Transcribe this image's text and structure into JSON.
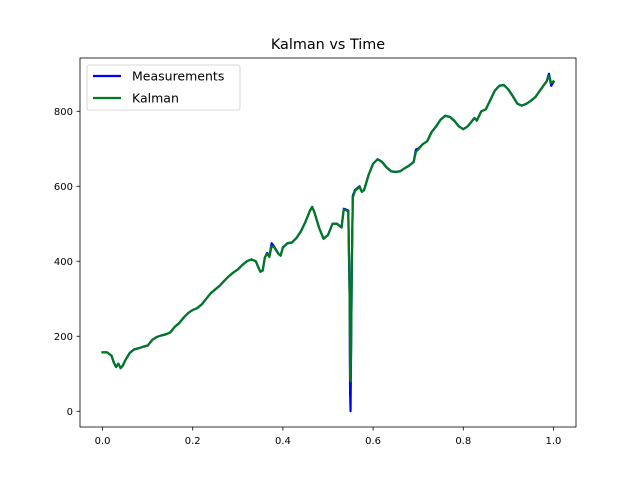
{
  "chart_data": {
    "type": "line",
    "title": "Kalman vs Time",
    "xlabel": "",
    "ylabel": "",
    "xlim": [
      -0.05,
      1.05
    ],
    "ylim": [
      -42,
      942
    ],
    "xticks": [
      0.0,
      0.2,
      0.4,
      0.6,
      0.8,
      1.0
    ],
    "xtick_labels": [
      "0.0",
      "0.2",
      "0.4",
      "0.6",
      "0.8",
      "1.0"
    ],
    "yticks": [
      0,
      200,
      400,
      600,
      800
    ],
    "ytick_labels": [
      "0",
      "200",
      "400",
      "600",
      "800"
    ],
    "grid": false,
    "legend_position": "top-left",
    "series": [
      {
        "name": "Measurements",
        "color": "#0000ff",
        "points": [
          [
            0.0,
            157
          ],
          [
            0.01,
            157
          ],
          [
            0.02,
            148
          ],
          [
            0.025,
            130
          ],
          [
            0.03,
            118
          ],
          [
            0.035,
            127
          ],
          [
            0.04,
            115
          ],
          [
            0.045,
            122
          ],
          [
            0.05,
            135
          ],
          [
            0.06,
            155
          ],
          [
            0.07,
            165
          ],
          [
            0.08,
            168
          ],
          [
            0.09,
            172
          ],
          [
            0.1,
            175
          ],
          [
            0.11,
            190
          ],
          [
            0.12,
            198
          ],
          [
            0.13,
            202
          ],
          [
            0.14,
            205
          ],
          [
            0.15,
            210
          ],
          [
            0.16,
            225
          ],
          [
            0.17,
            235
          ],
          [
            0.18,
            250
          ],
          [
            0.19,
            262
          ],
          [
            0.2,
            270
          ],
          [
            0.21,
            275
          ],
          [
            0.22,
            285
          ],
          [
            0.23,
            300
          ],
          [
            0.24,
            315
          ],
          [
            0.25,
            325
          ],
          [
            0.26,
            335
          ],
          [
            0.27,
            348
          ],
          [
            0.28,
            360
          ],
          [
            0.29,
            370
          ],
          [
            0.3,
            378
          ],
          [
            0.31,
            390
          ],
          [
            0.32,
            400
          ],
          [
            0.33,
            405
          ],
          [
            0.34,
            400
          ],
          [
            0.345,
            385
          ],
          [
            0.35,
            372
          ],
          [
            0.355,
            375
          ],
          [
            0.36,
            410
          ],
          [
            0.365,
            422
          ],
          [
            0.37,
            412
          ],
          [
            0.375,
            448
          ],
          [
            0.38,
            440
          ],
          [
            0.39,
            420
          ],
          [
            0.395,
            415
          ],
          [
            0.4,
            437
          ],
          [
            0.41,
            448
          ],
          [
            0.42,
            450
          ],
          [
            0.43,
            462
          ],
          [
            0.44,
            480
          ],
          [
            0.45,
            505
          ],
          [
            0.46,
            535
          ],
          [
            0.465,
            545
          ],
          [
            0.47,
            530
          ],
          [
            0.48,
            490
          ],
          [
            0.49,
            460
          ],
          [
            0.5,
            470
          ],
          [
            0.51,
            500
          ],
          [
            0.52,
            500
          ],
          [
            0.53,
            490
          ],
          [
            0.535,
            540
          ],
          [
            0.54,
            538
          ],
          [
            0.545,
            535
          ],
          [
            0.548,
            300
          ],
          [
            0.549,
            50
          ],
          [
            0.55,
            0
          ],
          [
            0.551,
            140
          ],
          [
            0.553,
            400
          ],
          [
            0.555,
            575
          ],
          [
            0.56,
            590
          ],
          [
            0.57,
            600
          ],
          [
            0.575,
            585
          ],
          [
            0.58,
            590
          ],
          [
            0.59,
            630
          ],
          [
            0.6,
            660
          ],
          [
            0.61,
            672
          ],
          [
            0.62,
            665
          ],
          [
            0.63,
            650
          ],
          [
            0.64,
            640
          ],
          [
            0.65,
            638
          ],
          [
            0.66,
            640
          ],
          [
            0.67,
            648
          ],
          [
            0.68,
            655
          ],
          [
            0.69,
            665
          ],
          [
            0.695,
            698
          ],
          [
            0.7,
            700
          ],
          [
            0.71,
            712
          ],
          [
            0.72,
            720
          ],
          [
            0.73,
            745
          ],
          [
            0.74,
            760
          ],
          [
            0.75,
            778
          ],
          [
            0.76,
            788
          ],
          [
            0.77,
            785
          ],
          [
            0.78,
            775
          ],
          [
            0.79,
            760
          ],
          [
            0.8,
            752
          ],
          [
            0.81,
            760
          ],
          [
            0.82,
            775
          ],
          [
            0.825,
            782
          ],
          [
            0.83,
            775
          ],
          [
            0.84,
            800
          ],
          [
            0.85,
            805
          ],
          [
            0.86,
            830
          ],
          [
            0.87,
            855
          ],
          [
            0.88,
            868
          ],
          [
            0.89,
            870
          ],
          [
            0.9,
            858
          ],
          [
            0.91,
            840
          ],
          [
            0.92,
            820
          ],
          [
            0.93,
            815
          ],
          [
            0.94,
            820
          ],
          [
            0.95,
            828
          ],
          [
            0.96,
            838
          ],
          [
            0.97,
            855
          ],
          [
            0.98,
            872
          ],
          [
            0.985,
            880
          ],
          [
            0.99,
            900
          ],
          [
            0.995,
            868
          ],
          [
            1.0,
            878
          ]
        ]
      },
      {
        "name": "Kalman",
        "color": "#007a1e",
        "points": [
          [
            0.0,
            157
          ],
          [
            0.01,
            157
          ],
          [
            0.02,
            148
          ],
          [
            0.025,
            130
          ],
          [
            0.03,
            118
          ],
          [
            0.035,
            127
          ],
          [
            0.04,
            115
          ],
          [
            0.045,
            122
          ],
          [
            0.05,
            135
          ],
          [
            0.06,
            155
          ],
          [
            0.07,
            165
          ],
          [
            0.08,
            168
          ],
          [
            0.09,
            172
          ],
          [
            0.1,
            175
          ],
          [
            0.11,
            190
          ],
          [
            0.12,
            198
          ],
          [
            0.13,
            202
          ],
          [
            0.14,
            205
          ],
          [
            0.15,
            210
          ],
          [
            0.16,
            225
          ],
          [
            0.17,
            235
          ],
          [
            0.18,
            250
          ],
          [
            0.19,
            262
          ],
          [
            0.2,
            270
          ],
          [
            0.21,
            275
          ],
          [
            0.22,
            285
          ],
          [
            0.23,
            300
          ],
          [
            0.24,
            315
          ],
          [
            0.25,
            325
          ],
          [
            0.26,
            335
          ],
          [
            0.27,
            348
          ],
          [
            0.28,
            360
          ],
          [
            0.29,
            370
          ],
          [
            0.3,
            378
          ],
          [
            0.31,
            390
          ],
          [
            0.32,
            400
          ],
          [
            0.33,
            405
          ],
          [
            0.34,
            400
          ],
          [
            0.345,
            385
          ],
          [
            0.35,
            372
          ],
          [
            0.355,
            375
          ],
          [
            0.36,
            410
          ],
          [
            0.365,
            420
          ],
          [
            0.37,
            412
          ],
          [
            0.375,
            440
          ],
          [
            0.38,
            438
          ],
          [
            0.39,
            420
          ],
          [
            0.395,
            415
          ],
          [
            0.4,
            437
          ],
          [
            0.41,
            448
          ],
          [
            0.42,
            450
          ],
          [
            0.43,
            462
          ],
          [
            0.44,
            480
          ],
          [
            0.45,
            505
          ],
          [
            0.46,
            535
          ],
          [
            0.465,
            545
          ],
          [
            0.47,
            530
          ],
          [
            0.48,
            490
          ],
          [
            0.49,
            460
          ],
          [
            0.5,
            470
          ],
          [
            0.51,
            500
          ],
          [
            0.52,
            500
          ],
          [
            0.53,
            490
          ],
          [
            0.535,
            538
          ],
          [
            0.54,
            536
          ],
          [
            0.545,
            533
          ],
          [
            0.548,
            310
          ],
          [
            0.549,
            90
          ],
          [
            0.55,
            80
          ],
          [
            0.551,
            150
          ],
          [
            0.553,
            400
          ],
          [
            0.555,
            570
          ],
          [
            0.56,
            588
          ],
          [
            0.57,
            598
          ],
          [
            0.575,
            585
          ],
          [
            0.58,
            590
          ],
          [
            0.59,
            630
          ],
          [
            0.6,
            660
          ],
          [
            0.61,
            672
          ],
          [
            0.62,
            665
          ],
          [
            0.63,
            650
          ],
          [
            0.64,
            640
          ],
          [
            0.65,
            638
          ],
          [
            0.66,
            640
          ],
          [
            0.67,
            648
          ],
          [
            0.68,
            655
          ],
          [
            0.69,
            665
          ],
          [
            0.695,
            692
          ],
          [
            0.7,
            698
          ],
          [
            0.71,
            712
          ],
          [
            0.72,
            720
          ],
          [
            0.73,
            745
          ],
          [
            0.74,
            760
          ],
          [
            0.75,
            778
          ],
          [
            0.76,
            788
          ],
          [
            0.77,
            785
          ],
          [
            0.78,
            775
          ],
          [
            0.79,
            760
          ],
          [
            0.8,
            752
          ],
          [
            0.81,
            760
          ],
          [
            0.82,
            775
          ],
          [
            0.825,
            782
          ],
          [
            0.83,
            775
          ],
          [
            0.84,
            800
          ],
          [
            0.85,
            805
          ],
          [
            0.86,
            830
          ],
          [
            0.87,
            855
          ],
          [
            0.88,
            868
          ],
          [
            0.89,
            870
          ],
          [
            0.9,
            858
          ],
          [
            0.91,
            840
          ],
          [
            0.92,
            820
          ],
          [
            0.93,
            815
          ],
          [
            0.94,
            820
          ],
          [
            0.95,
            828
          ],
          [
            0.96,
            838
          ],
          [
            0.97,
            855
          ],
          [
            0.98,
            872
          ],
          [
            0.985,
            880
          ],
          [
            0.99,
            895
          ],
          [
            0.995,
            875
          ],
          [
            1.0,
            880
          ]
        ]
      }
    ]
  }
}
